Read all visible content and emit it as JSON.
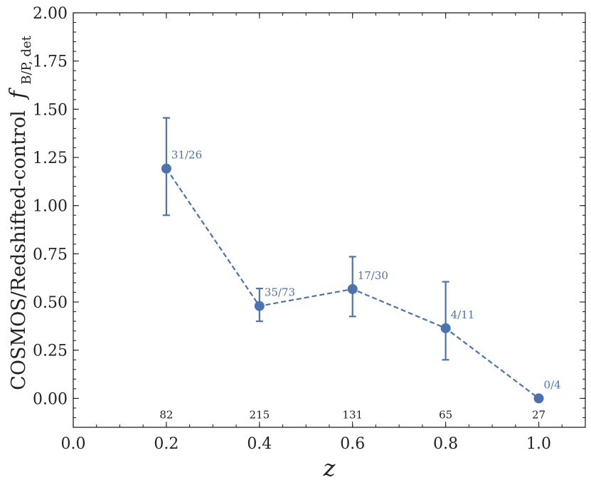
{
  "chart_data": {
    "type": "line",
    "title": "",
    "xlabel": "z",
    "ylabel": "COSMOS/Redshifted-control",
    "ylabel_symbol": "f",
    "ylabel_subscript": "B/P, det",
    "xlim": [
      0.0,
      1.1
    ],
    "ylim": [
      -0.15,
      2.0
    ],
    "xticks": [
      0.0,
      0.2,
      0.4,
      0.6,
      0.8,
      1.0
    ],
    "xtick_labels": [
      "0.0",
      "0.2",
      "0.4",
      "0.6",
      "0.8",
      "1.0"
    ],
    "x_minor_step": 0.05,
    "yticks": [
      0.0,
      0.25,
      0.5,
      0.75,
      1.0,
      1.25,
      1.5,
      1.75,
      2.0
    ],
    "ytick_labels": [
      "0.00",
      "0.25",
      "0.50",
      "0.75",
      "1.00",
      "1.25",
      "1.50",
      "1.75",
      "2.00"
    ],
    "y_minor_step": 0.05,
    "grid": false,
    "color": "#4c72b0",
    "line_style": "dashed",
    "series": [
      {
        "x": [
          0.2,
          0.4,
          0.6,
          0.8,
          1.0
        ],
        "y": [
          1.192,
          0.479,
          0.567,
          0.364,
          0.0
        ],
        "yerr_low": [
          0.95,
          0.4,
          0.425,
          0.2,
          0.0
        ],
        "yerr_high": [
          1.455,
          0.57,
          0.735,
          0.605,
          0.0
        ]
      }
    ],
    "point_labels": [
      "31/26",
      "35/73",
      "17/30",
      "4/11",
      "0/4"
    ],
    "counts": [
      "82",
      "215",
      "131",
      "65",
      "27"
    ],
    "counts_y": -0.085
  }
}
